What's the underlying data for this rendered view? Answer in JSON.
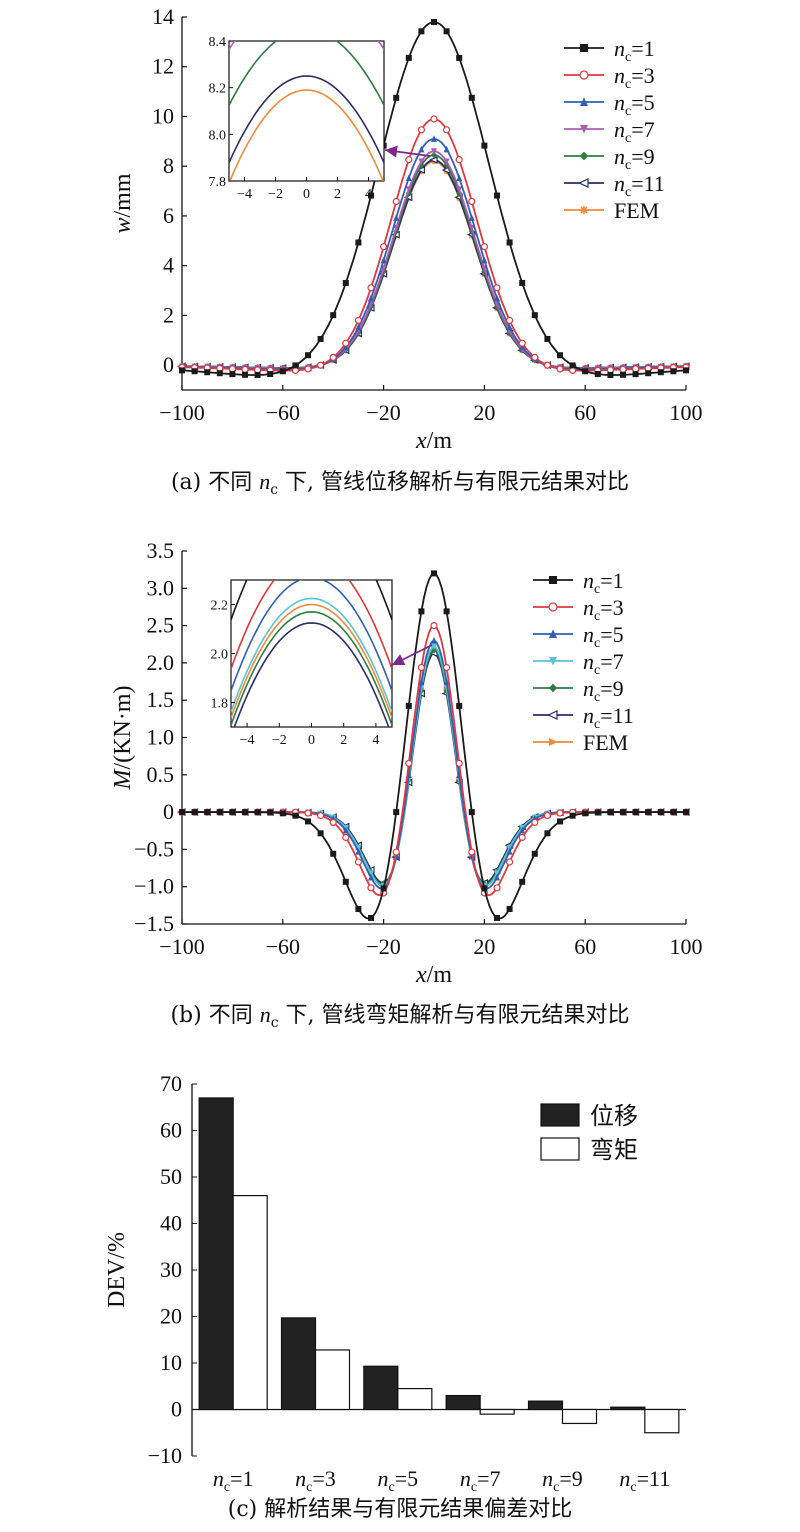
{
  "chart_data": [
    {
      "type": "line",
      "ylabel_italic": "w",
      "ylabel_rest": "/mm",
      "xlabel_italic": "x",
      "xlabel_rest": "/m",
      "xlim": [
        -100,
        100
      ],
      "ylim": [
        -1,
        14
      ],
      "xticks": [
        "−100",
        "−60",
        "−20",
        "20",
        "60",
        "100"
      ],
      "yticks": [
        "0",
        "2",
        "4",
        "6",
        "8",
        "10",
        "12",
        "14"
      ],
      "legend_position": "top-right",
      "caption_prefix": "(a) 不同 ",
      "caption_var": "n",
      "caption_sub": "c",
      "caption_suffix": " 下, 管线位移解析与有限元结果对比",
      "series": [
        {
          "name": "nc=1",
          "sym": "n",
          "sub": "c",
          "eq": "=1",
          "color": "#1a1a1a",
          "marker": "square",
          "peak": 13.8,
          "sigma": 22,
          "neg": 0.5
        },
        {
          "name": "nc=3",
          "sym": "n",
          "sub": "c",
          "eq": "=3",
          "color": "#e0383e",
          "marker": "circle",
          "peak": 9.9,
          "sigma": 17,
          "neg": 0.2
        },
        {
          "name": "nc=5",
          "sym": "n",
          "sub": "c",
          "eq": "=5",
          "color": "#2f5fb4",
          "marker": "triangle",
          "peak": 9.1,
          "sigma": 16.5,
          "neg": 0.15
        },
        {
          "name": "nc=7",
          "sym": "n",
          "sub": "c",
          "eq": "=7",
          "color": "#b05ab8",
          "marker": "tridown",
          "peak": 8.6,
          "sigma": 16.2,
          "neg": 0.12
        },
        {
          "name": "nc=9",
          "sym": "n",
          "sub": "c",
          "eq": "=9",
          "color": "#2e7d3e",
          "marker": "diamond",
          "peak": 8.45,
          "sigma": 16,
          "neg": 0.1
        },
        {
          "name": "nc=11",
          "sym": "n",
          "sub": "c",
          "eq": "=11",
          "color": "#2b2b6b",
          "marker": "triangle-left",
          "peak": 8.25,
          "sigma": 16,
          "neg": 0.1
        },
        {
          "name": "FEM",
          "sym": "FEM",
          "sub": "",
          "eq": "",
          "color": "#f08a3c",
          "marker": "star",
          "peak": 8.2,
          "sigma": 16,
          "neg": 0.1
        }
      ],
      "inset": {
        "xlim": [
          -5,
          5
        ],
        "ylim": [
          7.8,
          8.4
        ],
        "xticks": [
          "−4",
          "−2",
          "0",
          "2",
          "4"
        ],
        "yticks": [
          "7.8",
          "8.0",
          "8.2",
          "8.4"
        ],
        "arrow_color": "#7b2a8a"
      }
    },
    {
      "type": "line",
      "ylabel_italic": "M",
      "ylabel_rest": "/(KN·m)",
      "xlabel_italic": "x",
      "xlabel_rest": "/m",
      "xlim": [
        -100,
        100
      ],
      "ylim": [
        -1.5,
        3.5
      ],
      "xticks": [
        "−100",
        "−60",
        "−20",
        "20",
        "60",
        "100"
      ],
      "yticks": [
        "−1.5",
        "−1.0",
        "−0.5",
        "0",
        "0.5",
        "1.0",
        "1.5",
        "2.0",
        "2.5",
        "3.0",
        "3.5"
      ],
      "legend_position": "top-right",
      "caption_prefix": "(b) 不同 ",
      "caption_var": "n",
      "caption_sub": "c",
      "caption_suffix": " 下, 管线弯矩解析与有限元结果对比",
      "series": [
        {
          "name": "nc=1",
          "sym": "n",
          "sub": "c",
          "eq": "=1",
          "color": "#1a1a1a",
          "marker": "square",
          "peak": 3.2,
          "sigma": 15
        },
        {
          "name": "nc=3",
          "sym": "n",
          "sub": "c",
          "eq": "=3",
          "color": "#e0383e",
          "marker": "circle",
          "peak": 2.5,
          "sigma": 12.5
        },
        {
          "name": "nc=5",
          "sym": "n",
          "sub": "c",
          "eq": "=5",
          "color": "#2f5fb4",
          "marker": "triangle",
          "peak": 2.3,
          "sigma": 12
        },
        {
          "name": "nc=7",
          "sym": "n",
          "sub": "c",
          "eq": "=7",
          "color": "#5bc3d6",
          "marker": "tridown",
          "peak": 2.22,
          "sigma": 11.8
        },
        {
          "name": "nc=9",
          "sym": "n",
          "sub": "c",
          "eq": "=9",
          "color": "#2e7d3e",
          "marker": "diamond",
          "peak": 2.17,
          "sigma": 11.8
        },
        {
          "name": "nc=11",
          "sym": "n",
          "sub": "c",
          "eq": "=11",
          "color": "#2b2b6b",
          "marker": "triangle-left",
          "peak": 2.13,
          "sigma": 11.7
        },
        {
          "name": "FEM",
          "sym": "FEM",
          "sub": "",
          "eq": "",
          "color": "#f08a3c",
          "marker": "tri-right",
          "peak": 2.2,
          "sigma": 11.8
        }
      ],
      "inset": {
        "xlim": [
          -5,
          5
        ],
        "ylim": [
          1.7,
          2.3
        ],
        "xticks": [
          "−4",
          "−2",
          "0",
          "2",
          "4"
        ],
        "yticks": [
          "1.8",
          "2.0",
          "2.2"
        ],
        "arrow_color": "#7b2a8a"
      }
    },
    {
      "type": "bar",
      "ylabel": "DEV/%",
      "ylim": [
        -10,
        70
      ],
      "yticks": [
        "−10",
        "0",
        "10",
        "20",
        "30",
        "40",
        "50",
        "60",
        "70"
      ],
      "categories": [
        {
          "sym": "n",
          "sub": "c",
          "eq": "=1"
        },
        {
          "sym": "n",
          "sub": "c",
          "eq": "=3"
        },
        {
          "sym": "n",
          "sub": "c",
          "eq": "=5"
        },
        {
          "sym": "n",
          "sub": "c",
          "eq": "=7"
        },
        {
          "sym": "n",
          "sub": "c",
          "eq": "=9"
        },
        {
          "sym": "n",
          "sub": "c",
          "eq": "=11"
        }
      ],
      "legend_position": "top-right",
      "series": [
        {
          "name": "位移",
          "fill": "#222222",
          "values": [
            67,
            19.7,
            9.3,
            3.0,
            1.8,
            0.5
          ]
        },
        {
          "name": "弯矩",
          "fill": "#ffffff",
          "values": [
            46,
            12.8,
            4.5,
            -1.0,
            -3.0,
            -5.0
          ]
        }
      ],
      "caption": "(c) 解析结果与有限元结果偏差对比"
    }
  ]
}
